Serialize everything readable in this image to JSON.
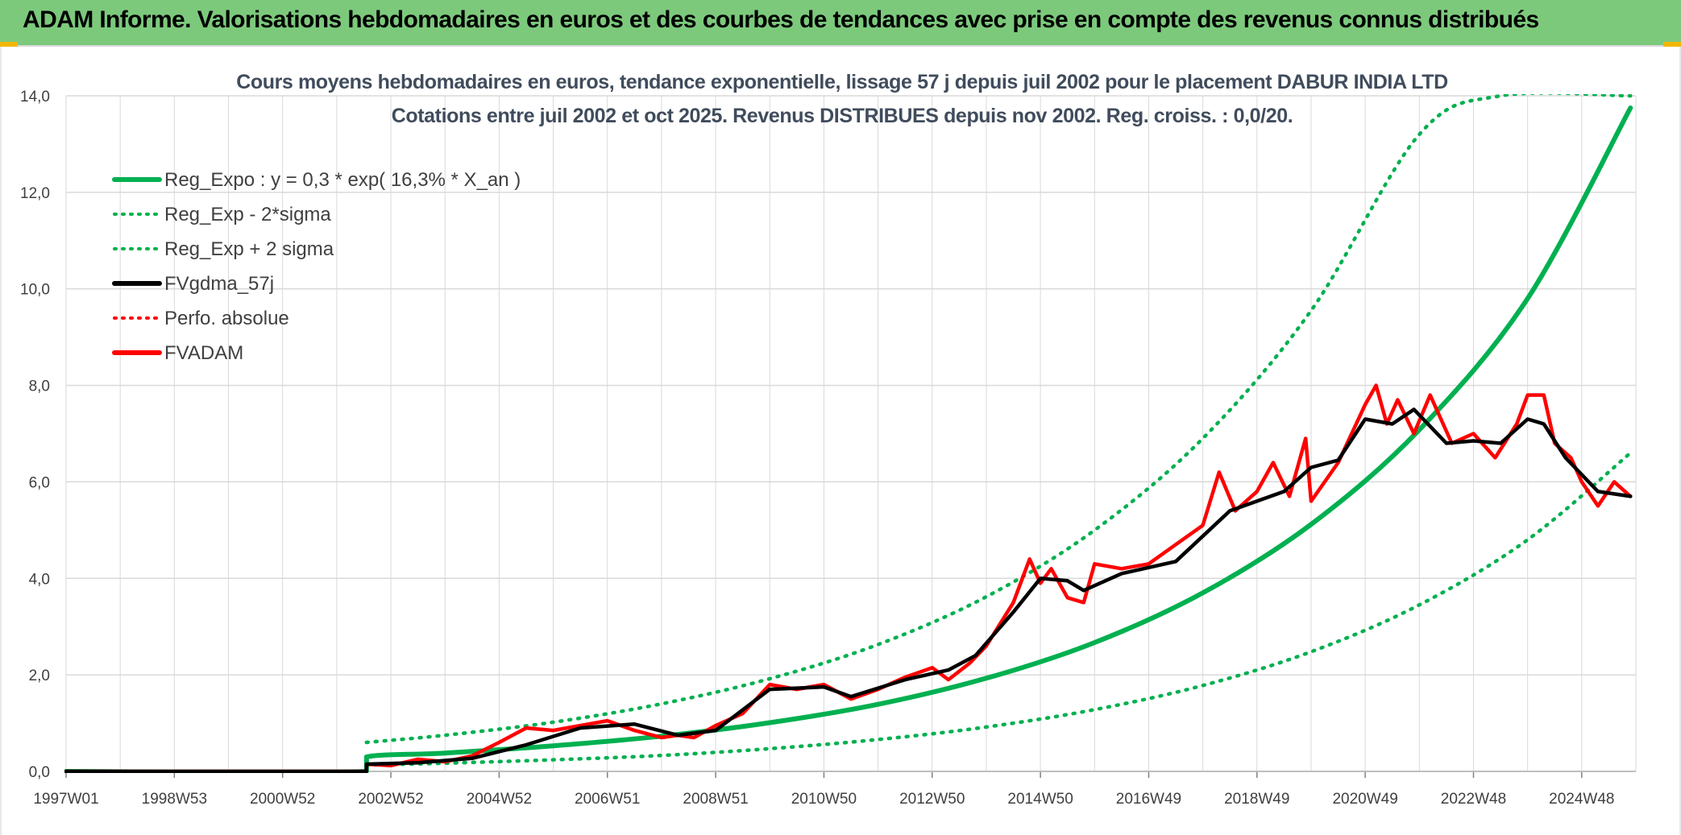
{
  "header": {
    "title": "ADAM Informe. Valorisations hebdomadaires en euros et des courbes de tendances avec prise en compte des revenus connus distribués"
  },
  "colors": {
    "header_bg": "#7cc97c",
    "reg_green": "#00b050",
    "fvgdma_black": "#000000",
    "fvadam_red": "#ff0000",
    "grid": "#d9d9d9"
  },
  "chart_data": {
    "type": "line",
    "title": "Cours moyens hebdomadaires en euros, tendance exponentielle, lissage 57 j depuis juil 2002 pour le placement DABUR INDIA LTD",
    "subtitle": "Cotations entre juil 2002 et oct 2025. Revenus DISTRIBUES depuis nov 2002. Reg. croiss. : 0,0/20.",
    "xlabel": "",
    "ylabel": "",
    "x_tick_labels": [
      "1997W01",
      "1998W53",
      "2000W52",
      "2002W52",
      "2004W52",
      "2006W51",
      "2008W51",
      "2010W50",
      "2012W50",
      "2014W50",
      "2016W49",
      "2018W49",
      "2020W49",
      "2022W48",
      "2024W48"
    ],
    "x_tick_years": [
      1997.0,
      1999.0,
      2001.0,
      2003.0,
      2005.0,
      2007.0,
      2009.0,
      2011.0,
      2013.0,
      2015.0,
      2017.0,
      2019.0,
      2021.0,
      2023.0,
      2025.0
    ],
    "xlim": [
      1997.0,
      2026.0
    ],
    "ylim": [
      0,
      14
    ],
    "y_ticks": [
      0,
      2,
      4,
      6,
      8,
      10,
      12,
      14
    ],
    "y_tick_labels": [
      "0,0",
      "2,0",
      "4,0",
      "6,0",
      "8,0",
      "10,0",
      "12,0",
      "14,0"
    ],
    "grid": true,
    "legend_position": "top-left",
    "legend": [
      {
        "key": "reg_expo",
        "label": "Reg_Expo : y = 0,3 * exp( 16,3% *  X_an )",
        "color": "#00b050",
        "style": "solid"
      },
      {
        "key": "reg_minus",
        "label": "Reg_Exp - 2*sigma",
        "color": "#00b050",
        "style": "dotted"
      },
      {
        "key": "reg_plus",
        "label": "Reg_Exp + 2 sigma",
        "color": "#00b050",
        "style": "dotted"
      },
      {
        "key": "fvgdma",
        "label": "FVgdma_57j",
        "color": "#000000",
        "style": "solid"
      },
      {
        "key": "perfo",
        "label": "Perfo. absolue",
        "color": "#ff0000",
        "style": "dotted"
      },
      {
        "key": "fvadam",
        "label": "FVADAM",
        "color": "#ff0000",
        "style": "solid"
      }
    ],
    "series": [
      {
        "name": "Reg_Expo : y = 0,3 * exp( 16,3% *  X_an )",
        "x": [
          1997.0,
          2002.55,
          2002.55,
          2004,
          2006,
          2008,
          2010,
          2012,
          2014,
          2016,
          2018,
          2020,
          2022,
          2024,
          2025.9
        ],
        "y": [
          0,
          0,
          0.3,
          0.38,
          0.53,
          0.73,
          1.01,
          1.39,
          1.93,
          2.67,
          3.7,
          5.12,
          7.08,
          9.8,
          13.75
        ]
      },
      {
        "name": "Reg_Exp + 2 sigma",
        "x": [
          2002.55,
          2004,
          2006,
          2008,
          2010,
          2012,
          2014,
          2016,
          2018,
          2020,
          2022,
          2023.5,
          2025.9
        ],
        "y": [
          0.6,
          0.75,
          1.02,
          1.4,
          1.92,
          2.63,
          3.62,
          5.0,
          6.9,
          9.55,
          13.2,
          14.0,
          14.0
        ]
      },
      {
        "name": "Reg_Exp - 2*sigma",
        "x": [
          2002.55,
          2004,
          2006,
          2008,
          2010,
          2012,
          2014,
          2016,
          2018,
          2020,
          2022,
          2024,
          2025.9
        ],
        "y": [
          0.13,
          0.17,
          0.24,
          0.33,
          0.47,
          0.66,
          0.92,
          1.28,
          1.78,
          2.48,
          3.45,
          4.8,
          6.6
        ]
      },
      {
        "name": "FVgdma_57j",
        "x": [
          1997.0,
          2002.55,
          2002.55,
          2003.5,
          2004.5,
          2005.5,
          2006.5,
          2007.5,
          2008.3,
          2009.0,
          2010.0,
          2011.0,
          2011.5,
          2012.5,
          2013.3,
          2013.8,
          2014.5,
          2015.0,
          2015.5,
          2015.8,
          2016.5,
          2017.5,
          2018.5,
          2019.5,
          2020.0,
          2020.5,
          2021.0,
          2021.5,
          2021.9,
          2022.5,
          2023.0,
          2023.5,
          2024.0,
          2024.3,
          2024.7,
          2025.3,
          2025.9
        ],
        "y": [
          0,
          0,
          0.15,
          0.18,
          0.27,
          0.55,
          0.9,
          0.98,
          0.75,
          0.85,
          1.7,
          1.75,
          1.55,
          1.9,
          2.1,
          2.4,
          3.3,
          4.0,
          3.95,
          3.75,
          4.1,
          4.35,
          5.4,
          5.8,
          6.3,
          6.45,
          7.3,
          7.2,
          7.5,
          6.8,
          6.85,
          6.8,
          7.3,
          7.2,
          6.5,
          5.8,
          5.7
        ]
      },
      {
        "name": "FVADAM",
        "x": [
          1997.0,
          2002.55,
          2002.55,
          2003.0,
          2003.5,
          2004.0,
          2004.5,
          2005.0,
          2005.5,
          2006.0,
          2006.5,
          2007.0,
          2007.5,
          2008.0,
          2008.3,
          2008.6,
          2009.0,
          2009.5,
          2010.0,
          2010.5,
          2011.0,
          2011.5,
          2012.0,
          2012.5,
          2013.0,
          2013.3,
          2013.7,
          2014.0,
          2014.5,
          2014.8,
          2015.0,
          2015.2,
          2015.5,
          2015.8,
          2016.0,
          2016.5,
          2017.0,
          2017.5,
          2018.0,
          2018.3,
          2018.6,
          2019.0,
          2019.3,
          2019.6,
          2019.9,
          2020.0,
          2020.5,
          2021.0,
          2021.2,
          2021.4,
          2021.6,
          2021.9,
          2022.2,
          2022.6,
          2023.0,
          2023.4,
          2023.8,
          2024.0,
          2024.3,
          2024.5,
          2024.8,
          2025.0,
          2025.3,
          2025.6,
          2025.9
        ],
        "y": [
          0,
          0,
          0.15,
          0.12,
          0.25,
          0.2,
          0.32,
          0.6,
          0.9,
          0.85,
          0.95,
          1.05,
          0.85,
          0.7,
          0.75,
          0.7,
          0.95,
          1.2,
          1.8,
          1.7,
          1.8,
          1.5,
          1.7,
          1.95,
          2.15,
          1.9,
          2.25,
          2.6,
          3.5,
          4.4,
          3.9,
          4.2,
          3.6,
          3.5,
          4.3,
          4.2,
          4.3,
          4.7,
          5.1,
          6.2,
          5.4,
          5.8,
          6.4,
          5.7,
          6.9,
          5.6,
          6.4,
          7.6,
          8.0,
          7.2,
          7.7,
          7.0,
          7.8,
          6.8,
          7.0,
          6.5,
          7.2,
          7.8,
          7.8,
          6.8,
          6.5,
          6.0,
          5.5,
          6.0,
          5.7
        ]
      }
    ]
  }
}
